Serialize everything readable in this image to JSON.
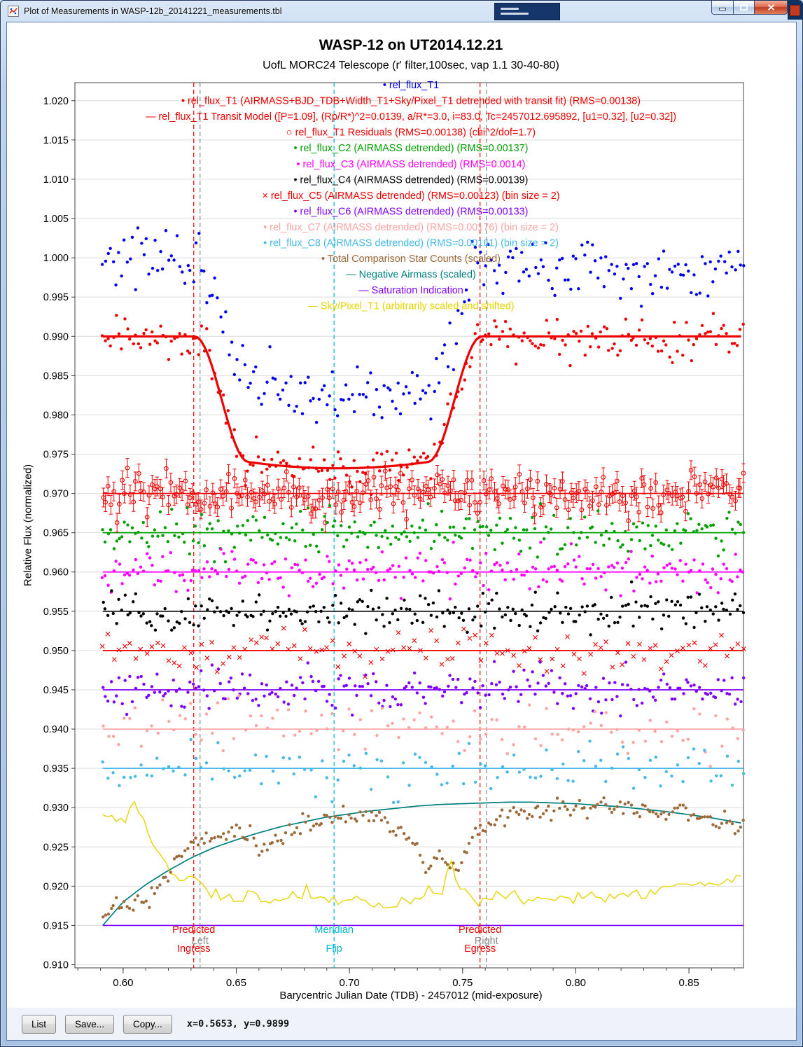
{
  "window": {
    "title": "Plot of Measurements in WASP-12b_20141221_measurements.tbl"
  },
  "toolbar": {
    "list_label": "List",
    "save_label": "Save...",
    "copy_label": "Copy...",
    "cursor_position": "x=0.5653, y=0.9899"
  },
  "chart_data": {
    "type": "scatter",
    "title": "WASP-12 on UT2014.12.21",
    "subtitle": "UofL MORC24 Telescope (r' filter,100sec, vap 1.1 30-40-80)",
    "xlabel": "Barycentric Julian Date (TDB) - 2457012 (mid-exposure)",
    "ylabel": "Relative Flux (normalized)",
    "xlim": [
      0.5787,
      0.8741
    ],
    "ylim": [
      0.9096,
      1.0223
    ],
    "x_data_range": [
      0.591,
      0.874
    ],
    "xtick_values": [
      0.6,
      0.65,
      0.7,
      0.75,
      0.8,
      0.85
    ],
    "ytick_values": [
      1.02,
      1.015,
      1.01,
      1.005,
      1.0,
      0.995,
      0.99,
      0.985,
      0.98,
      0.975,
      0.97,
      0.965,
      0.96,
      0.955,
      0.95,
      0.945,
      0.94,
      0.935,
      0.93,
      0.925,
      0.92,
      0.915,
      0.91
    ],
    "grid": "horizontal",
    "legend_position": "top-center",
    "legend": [
      {
        "glyph": "dot",
        "color": "#0000ee",
        "label": "rel_flux_T1"
      },
      {
        "glyph": "dot",
        "color": "#ee0000",
        "label": "rel_flux_T1 (AIRMASS+BJD_TDB+Width_T1+Sky/Pixel_T1 detrended with transit fit) (RMS=0.00138)"
      },
      {
        "glyph": "line",
        "color": "#ee0000",
        "label": "rel_flux_T1 Transit Model ([P=1.09], (Rp/R*)^2=0.0139, a/R*=3.0, i=83.0, Tc=2457012.695892, [u1=0.32], [u2=0.32])"
      },
      {
        "glyph": "circle",
        "color": "#ee0000",
        "label": "rel_flux_T1 Residuals (RMS=0.00138) (chi^2/dof=1.7)"
      },
      {
        "glyph": "dot",
        "color": "#00a000",
        "label": "rel_flux_C2 (AIRMASS detrended) (RMS=0.00137)"
      },
      {
        "glyph": "dot",
        "color": "#ff00ff",
        "label": "rel_flux_C3 (AIRMASS detrended) (RMS=0.0014)"
      },
      {
        "glyph": "dot",
        "color": "#000000",
        "label": "rel_flux_C4 (AIRMASS detrended) (RMS=0.00139)"
      },
      {
        "glyph": "cross",
        "color": "#ee0000",
        "label": "rel_flux_C5 (AIRMASS detrended) (RMS=0.00123) (bin size = 2)"
      },
      {
        "glyph": "dot",
        "color": "#8000ff",
        "label": "rel_flux_C6 (AIRMASS detrended) (RMS=0.00133)"
      },
      {
        "glyph": "dot",
        "color": "#ffa3a3",
        "label": "rel_flux_C7 (AIRMASS detrended) (RMS=0.00176) (bin size = 2)"
      },
      {
        "glyph": "dot",
        "color": "#45b9e8",
        "label": "rel_flux_C8 (AIRMASS detrended) (RMS=0.00161) (bin size = 2)"
      },
      {
        "glyph": "dot",
        "color": "#9c6b3c",
        "label": "Total Comparison Star Counts (scaled)"
      },
      {
        "glyph": "line",
        "color": "#007f7f",
        "label": "Negative Airmass (scaled)"
      },
      {
        "glyph": "line",
        "color": "#8000ff",
        "label": "Saturation Indication"
      },
      {
        "glyph": "line",
        "color": "#e8d400",
        "label": "Sky/Pixel_T1 (arbitrarily scaled and shifted)"
      }
    ],
    "transit_model": {
      "baseline": 0.99,
      "depth": 0.016,
      "t1": 0.6315,
      "t2": 0.6555,
      "t3": 0.7345,
      "t4": 0.7585,
      "curvature": 0.05,
      "color": "#ee0000",
      "width": 3.2
    },
    "series": [
      {
        "name": "rel_flux_T1",
        "color": "#0000ee",
        "marker": "dot",
        "n": 235,
        "seed": 101,
        "level": 1.0005,
        "trend": -0.0085,
        "noise": 0.0019,
        "transit": true
      },
      {
        "name": "rel_flux_T1_detrended",
        "color": "#ee0000",
        "marker": "dot",
        "n": 235,
        "seed": 202,
        "level": 0.99,
        "noise": 0.00138,
        "transit": true
      },
      {
        "name": "rel_flux_T1_residuals",
        "color": "#ee0000",
        "marker": "circle",
        "n": 235,
        "seed": 303,
        "level": 0.97,
        "noise": 0.00138,
        "errorbar": 0.0012,
        "baseline_line": true
      },
      {
        "name": "rel_flux_C2",
        "color": "#00a000",
        "marker": "dot",
        "n": 235,
        "seed": 404,
        "level": 0.965,
        "noise": 0.00137,
        "baseline_line": true
      },
      {
        "name": "rel_flux_C3",
        "color": "#ff00ff",
        "marker": "dot",
        "n": 235,
        "seed": 505,
        "level": 0.96,
        "noise": 0.0014,
        "baseline_line": true
      },
      {
        "name": "rel_flux_C4",
        "color": "#000000",
        "marker": "dot",
        "n": 235,
        "seed": 606,
        "level": 0.955,
        "noise": 0.00139,
        "baseline_line": true
      },
      {
        "name": "rel_flux_C5",
        "color": "#ee0000",
        "marker": "cross",
        "n": 118,
        "seed": 707,
        "level": 0.95,
        "noise": 0.00123,
        "baseline_line": true
      },
      {
        "name": "rel_flux_C6",
        "color": "#8000ff",
        "marker": "dot",
        "n": 235,
        "seed": 808,
        "level": 0.945,
        "noise": 0.00133,
        "baseline_line": true
      },
      {
        "name": "rel_flux_C7",
        "color": "#ffa3a3",
        "marker": "dot",
        "n": 118,
        "seed": 909,
        "level": 0.94,
        "noise": 0.00176,
        "baseline_line": true
      },
      {
        "name": "rel_flux_C8",
        "color": "#45b9e8",
        "marker": "dot",
        "n": 118,
        "seed": 1010,
        "level": 0.935,
        "noise": 0.00161,
        "baseline_line": true
      },
      {
        "name": "total_comparison_star_counts",
        "color": "#9c6b3c",
        "marker": "dot",
        "n": 235,
        "seed": 1111,
        "noise": 0.0006,
        "anchors": [
          [
            0.591,
            0.916
          ],
          [
            0.597,
            0.918
          ],
          [
            0.603,
            0.9175
          ],
          [
            0.61,
            0.9185
          ],
          [
            0.617,
            0.92
          ],
          [
            0.623,
            0.9235
          ],
          [
            0.629,
            0.925
          ],
          [
            0.635,
            0.9255
          ],
          [
            0.641,
            0.9265
          ],
          [
            0.648,
            0.927
          ],
          [
            0.655,
            0.927
          ],
          [
            0.661,
            0.9245
          ],
          [
            0.667,
            0.9262
          ],
          [
            0.674,
            0.927
          ],
          [
            0.681,
            0.9278
          ],
          [
            0.688,
            0.9282
          ],
          [
            0.695,
            0.929
          ],
          [
            0.702,
            0.929
          ],
          [
            0.709,
            0.9288
          ],
          [
            0.716,
            0.9283
          ],
          [
            0.723,
            0.9278
          ],
          [
            0.729,
            0.9252
          ],
          [
            0.734,
            0.9222
          ],
          [
            0.739,
            0.9238
          ],
          [
            0.744,
            0.9228
          ],
          [
            0.749,
            0.9222
          ],
          [
            0.754,
            0.9262
          ],
          [
            0.759,
            0.9275
          ],
          [
            0.765,
            0.9282
          ],
          [
            0.772,
            0.9288
          ],
          [
            0.779,
            0.9292
          ],
          [
            0.786,
            0.9295
          ],
          [
            0.793,
            0.9296
          ],
          [
            0.8,
            0.93
          ],
          [
            0.807,
            0.9303
          ],
          [
            0.814,
            0.9302
          ],
          [
            0.821,
            0.93
          ],
          [
            0.828,
            0.9297
          ],
          [
            0.835,
            0.9293
          ],
          [
            0.842,
            0.9291
          ],
          [
            0.849,
            0.9294
          ],
          [
            0.856,
            0.9288
          ],
          [
            0.863,
            0.9283
          ],
          [
            0.87,
            0.9277
          ],
          [
            0.874,
            0.9272
          ]
        ]
      }
    ],
    "curves": [
      {
        "name": "negative_airmass",
        "color": "#007f7f",
        "width": 1.7,
        "anchors": [
          [
            0.591,
            0.915
          ],
          [
            0.6,
            0.918
          ],
          [
            0.61,
            0.9202
          ],
          [
            0.62,
            0.922
          ],
          [
            0.63,
            0.9236
          ],
          [
            0.64,
            0.9249
          ],
          [
            0.65,
            0.9259
          ],
          [
            0.66,
            0.9268
          ],
          [
            0.67,
            0.9276
          ],
          [
            0.68,
            0.9282
          ],
          [
            0.69,
            0.9288
          ],
          [
            0.7,
            0.9292
          ],
          [
            0.71,
            0.9296
          ],
          [
            0.72,
            0.9299
          ],
          [
            0.73,
            0.9302
          ],
          [
            0.74,
            0.9304
          ],
          [
            0.75,
            0.9305
          ],
          [
            0.76,
            0.9306
          ],
          [
            0.77,
            0.9307
          ],
          [
            0.78,
            0.9307
          ],
          [
            0.79,
            0.9306
          ],
          [
            0.8,
            0.9305
          ],
          [
            0.81,
            0.9303
          ],
          [
            0.82,
            0.9301
          ],
          [
            0.83,
            0.9298
          ],
          [
            0.84,
            0.9295
          ],
          [
            0.85,
            0.9291
          ],
          [
            0.86,
            0.9287
          ],
          [
            0.87,
            0.9282
          ],
          [
            0.874,
            0.928
          ]
        ]
      },
      {
        "name": "sky_pixel_T1",
        "color": "#e8d400",
        "width": 1.4,
        "jitter": 0.0004,
        "seed": 1212,
        "anchors": [
          [
            0.591,
            0.9293
          ],
          [
            0.596,
            0.9288
          ],
          [
            0.6,
            0.928
          ],
          [
            0.604,
            0.931
          ],
          [
            0.608,
            0.93
          ],
          [
            0.612,
            0.9258
          ],
          [
            0.616,
            0.9242
          ],
          [
            0.62,
            0.9225
          ],
          [
            0.625,
            0.9212
          ],
          [
            0.63,
            0.9208
          ],
          [
            0.635,
            0.92
          ],
          [
            0.64,
            0.919
          ],
          [
            0.646,
            0.9185
          ],
          [
            0.652,
            0.9183
          ],
          [
            0.658,
            0.9188
          ],
          [
            0.664,
            0.9183
          ],
          [
            0.67,
            0.918
          ],
          [
            0.676,
            0.9188
          ],
          [
            0.682,
            0.9195
          ],
          [
            0.688,
            0.9185
          ],
          [
            0.694,
            0.918
          ],
          [
            0.7,
            0.9178
          ],
          [
            0.706,
            0.9182
          ],
          [
            0.712,
            0.9178
          ],
          [
            0.718,
            0.9175
          ],
          [
            0.724,
            0.918
          ],
          [
            0.73,
            0.9178
          ],
          [
            0.735,
            0.9195
          ],
          [
            0.74,
            0.9185
          ],
          [
            0.745,
            0.9232
          ],
          [
            0.749,
            0.9195
          ],
          [
            0.753,
            0.9188
          ],
          [
            0.758,
            0.9185
          ],
          [
            0.764,
            0.9192
          ],
          [
            0.77,
            0.9188
          ],
          [
            0.776,
            0.9183
          ],
          [
            0.782,
            0.9186
          ],
          [
            0.788,
            0.9183
          ],
          [
            0.794,
            0.9185
          ],
          [
            0.8,
            0.9183
          ],
          [
            0.806,
            0.9186
          ],
          [
            0.812,
            0.9188
          ],
          [
            0.818,
            0.919
          ],
          [
            0.824,
            0.9192
          ],
          [
            0.83,
            0.919
          ],
          [
            0.836,
            0.9193
          ],
          [
            0.842,
            0.9196
          ],
          [
            0.848,
            0.9198
          ],
          [
            0.854,
            0.92
          ],
          [
            0.86,
            0.9203
          ],
          [
            0.866,
            0.9206
          ],
          [
            0.871,
            0.921
          ],
          [
            0.874,
            0.9212
          ]
        ]
      },
      {
        "name": "saturation_indication",
        "color": "#8000ff",
        "width": 1.7,
        "y": 0.915
      }
    ],
    "vlines": [
      {
        "x": 0.6312,
        "color": "#ee0000",
        "labels": [
          "Predicted",
          "Ingress"
        ]
      },
      {
        "x": 0.634,
        "color": "#8c8c8c",
        "labels": [
          "Left"
        ]
      },
      {
        "x": 0.6932,
        "color": "#00b5cc",
        "labels": [
          "Meridian",
          "Flip"
        ]
      },
      {
        "x": 0.7577,
        "color": "#ee0000",
        "labels": [
          "Predicted",
          "Egress"
        ]
      },
      {
        "x": 0.7605,
        "color": "#8c8c8c",
        "labels": [
          "Right"
        ]
      }
    ]
  }
}
